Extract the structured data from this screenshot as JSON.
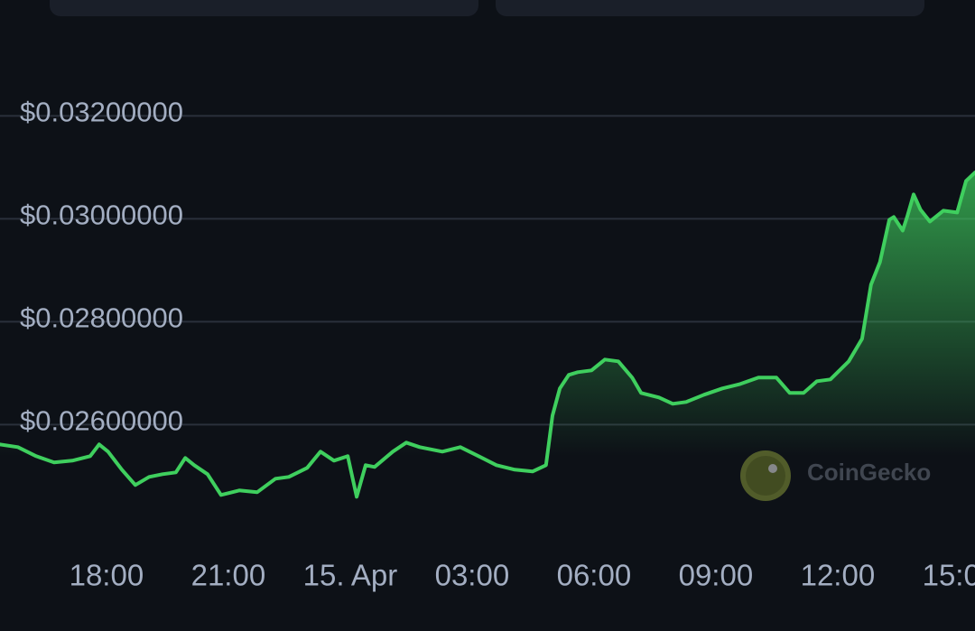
{
  "chart_data": {
    "type": "line",
    "watermark": "CoinGecko",
    "xlim": [
      15.38,
      39.38
    ],
    "xticks": [
      {
        "value": 18,
        "label": "18:00"
      },
      {
        "value": 21,
        "label": "21:00"
      },
      {
        "value": 24,
        "label": "15. Apr"
      },
      {
        "value": 27,
        "label": "03:00"
      },
      {
        "value": 30,
        "label": "06:00"
      },
      {
        "value": 33,
        "label": "09:00"
      },
      {
        "value": 36,
        "label": "12:00"
      },
      {
        "value": 39,
        "label": "15:00"
      }
    ],
    "ylim": [
      0.0239,
      0.0332
    ],
    "yticks": [
      {
        "value": 0.026,
        "label": "$0.02600000"
      },
      {
        "value": 0.028,
        "label": "$0.02800000"
      },
      {
        "value": 0.03,
        "label": "$0.03000000"
      },
      {
        "value": 0.032,
        "label": "$0.03200000"
      }
    ],
    "grid": true,
    "color": "#3fcf5e",
    "x": [
      15.38,
      15.82,
      16.27,
      16.71,
      17.16,
      17.6,
      17.82,
      18.04,
      18.38,
      18.71,
      19.05,
      19.38,
      19.71,
      19.94,
      20.16,
      20.49,
      20.82,
      21.27,
      21.71,
      22.16,
      22.49,
      22.94,
      23.27,
      23.6,
      23.94,
      24.16,
      24.38,
      24.6,
      25.05,
      25.38,
      25.71,
      26.27,
      26.71,
      27.16,
      27.6,
      28.05,
      28.49,
      28.82,
      28.98,
      29.16,
      29.38,
      29.6,
      29.94,
      30.27,
      30.6,
      30.94,
      31.16,
      31.6,
      31.94,
      32.27,
      32.71,
      33.16,
      33.6,
      34.05,
      34.49,
      34.82,
      35.16,
      35.49,
      35.82,
      36.27,
      36.6,
      36.82,
      37.04,
      37.27,
      37.38,
      37.6,
      37.71,
      37.87,
      38.04,
      38.27,
      38.6,
      38.94,
      39.16,
      39.38
    ],
    "values": [
      0.025614,
      0.025561,
      0.025386,
      0.025263,
      0.025298,
      0.025386,
      0.025614,
      0.025474,
      0.025123,
      0.024825,
      0.024982,
      0.025035,
      0.02507,
      0.025351,
      0.025211,
      0.025035,
      0.024632,
      0.024719,
      0.024684,
      0.024947,
      0.024982,
      0.025158,
      0.025474,
      0.025298,
      0.025386,
      0.024596,
      0.025211,
      0.025175,
      0.025474,
      0.025649,
      0.025561,
      0.025474,
      0.025561,
      0.025386,
      0.025211,
      0.025123,
      0.025088,
      0.025211,
      0.026175,
      0.026702,
      0.026965,
      0.027018,
      0.027053,
      0.027263,
      0.027228,
      0.026912,
      0.026614,
      0.026526,
      0.026404,
      0.026439,
      0.026579,
      0.026702,
      0.026789,
      0.026912,
      0.026912,
      0.026614,
      0.026614,
      0.026842,
      0.026877,
      0.027228,
      0.027667,
      0.028719,
      0.029158,
      0.029982,
      0.030035,
      0.029772,
      0.030035,
      0.030474,
      0.030175,
      0.029947,
      0.030158,
      0.030123,
      0.030737,
      0.0309
    ]
  }
}
